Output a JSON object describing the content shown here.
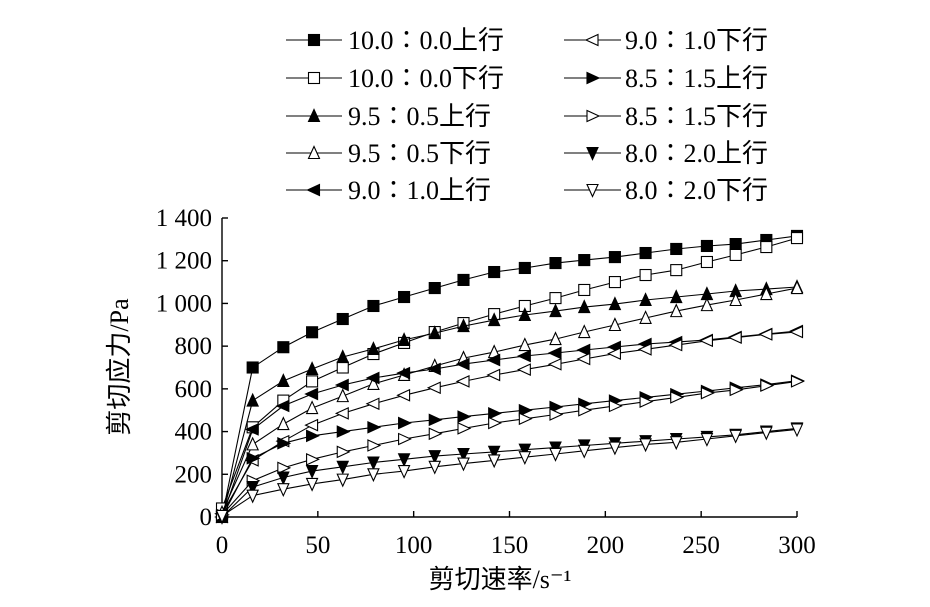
{
  "chart_data": {
    "type": "line",
    "xlabel": "剪切速率/s⁻¹",
    "ylabel": "剪切应力/Pa",
    "xlim": [
      0,
      300
    ],
    "ylim": [
      0,
      1400
    ],
    "xticks": [
      0,
      50,
      100,
      150,
      200,
      250,
      300
    ],
    "xtick_labels": [
      "0",
      "50",
      "100",
      "150",
      "200",
      "250",
      "300"
    ],
    "yticks": [
      0,
      200,
      400,
      600,
      800,
      1000,
      1200,
      1400
    ],
    "ytick_labels": [
      "0",
      "200",
      "400",
      "600",
      "800",
      "1 000",
      "1 200",
      "1 400"
    ],
    "grid": false,
    "legend": "top",
    "x": [
      0,
      16,
      32,
      47,
      63,
      79,
      95,
      111,
      126,
      142,
      158,
      174,
      189,
      205,
      221,
      237,
      253,
      268,
      284,
      300
    ],
    "series": [
      {
        "name": "10.0∶0.0上行",
        "marker": "filled-square",
        "values": [
          0,
          700,
          795,
          865,
          927,
          988,
          1030,
          1072,
          1110,
          1147,
          1166,
          1189,
          1203,
          1217,
          1236,
          1255,
          1269,
          1278,
          1297,
          1316
        ]
      },
      {
        "name": "10.0∶0.0下行",
        "marker": "open-square",
        "values": [
          40,
          420,
          545,
          635,
          700,
          763,
          815,
          866,
          908,
          950,
          988,
          1025,
          1063,
          1100,
          1133,
          1156,
          1194,
          1227,
          1264,
          1306
        ]
      },
      {
        "name": "9.5∶0.5上行",
        "marker": "filled-triangle-up",
        "values": [
          0,
          545,
          637,
          693,
          749,
          787,
          829,
          861,
          894,
          922,
          946,
          964,
          983,
          997,
          1016,
          1030,
          1044,
          1058,
          1067,
          1077
        ]
      },
      {
        "name": "9.5∶0.5下行",
        "marker": "open-triangle-up",
        "values": [
          20,
          340,
          435,
          510,
          566,
          623,
          665,
          707,
          744,
          772,
          805,
          833,
          866,
          899,
          932,
          964,
          992,
          1016,
          1044,
          1072
        ]
      },
      {
        "name": "9.0∶1.0上行",
        "marker": "filled-triangle-left",
        "values": [
          0,
          410,
          520,
          576,
          618,
          651,
          674,
          693,
          716,
          735,
          754,
          768,
          782,
          796,
          810,
          819,
          829,
          843,
          857,
          871
        ]
      },
      {
        "name": "9.0∶1.0下行",
        "marker": "open-triangle-left",
        "values": [
          15,
          265,
          355,
          430,
          485,
          530,
          570,
          605,
          635,
          665,
          690,
          715,
          740,
          765,
          785,
          805,
          825,
          840,
          855,
          866
        ]
      },
      {
        "name": "8.5∶1.5上行",
        "marker": "filled-triangle-right",
        "values": [
          0,
          275,
          345,
          380,
          400,
          420,
          440,
          455,
          470,
          485,
          500,
          515,
          530,
          545,
          560,
          575,
          590,
          605,
          620,
          638
        ]
      },
      {
        "name": "8.5∶1.5下行",
        "marker": "open-triangle-right",
        "values": [
          10,
          170,
          230,
          270,
          305,
          335,
          365,
          390,
          415,
          440,
          460,
          480,
          500,
          520,
          540,
          560,
          580,
          595,
          615,
          635
        ]
      },
      {
        "name": "8.0∶2.0上行",
        "marker": "filled-triangle-down",
        "values": [
          0,
          140,
          185,
          215,
          235,
          255,
          270,
          285,
          295,
          305,
          315,
          325,
          335,
          345,
          355,
          365,
          375,
          385,
          400,
          415
        ]
      },
      {
        "name": "8.0∶2.0下行",
        "marker": "open-triangle-down",
        "values": [
          5,
          100,
          130,
          155,
          175,
          200,
          215,
          235,
          250,
          265,
          280,
          295,
          310,
          325,
          340,
          350,
          365,
          380,
          395,
          410
        ]
      }
    ]
  }
}
